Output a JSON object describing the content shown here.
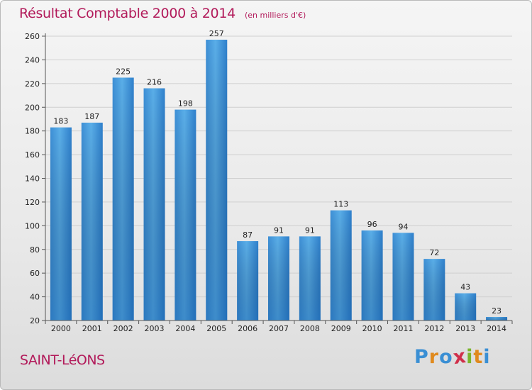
{
  "chart_data": {
    "type": "bar",
    "title": "Résultat Comptable 2000 à 2014",
    "unit_note": "(en milliers d'€)",
    "categories": [
      "2000",
      "2001",
      "2002",
      "2003",
      "2004",
      "2005",
      "2006",
      "2007",
      "2008",
      "2009",
      "2010",
      "2011",
      "2012",
      "2013",
      "2014"
    ],
    "values": [
      183,
      187,
      225,
      216,
      198,
      257,
      87,
      91,
      91,
      113,
      96,
      94,
      72,
      43,
      23
    ],
    "ylim": [
      20,
      260
    ],
    "yticks": [
      20,
      40,
      60,
      80,
      100,
      120,
      140,
      160,
      180,
      200,
      220,
      240,
      260
    ],
    "xlabel": "",
    "ylabel": "",
    "grid": true,
    "bar_color": "#4a9fe0",
    "bar_color_dark": "#2a78c3"
  },
  "commune": "SAINT-LéONS",
  "logo": {
    "text": "Proxiti",
    "letters": [
      {
        "ch": "P",
        "color": "#3a8fd4"
      },
      {
        "ch": "r",
        "color": "#e08a1e"
      },
      {
        "ch": "o",
        "color": "#3a8fd4"
      },
      {
        "ch": "x",
        "color": "#d02f4a"
      },
      {
        "ch": "i",
        "color": "#7bb52c"
      },
      {
        "ch": "t",
        "color": "#e08a1e"
      },
      {
        "ch": "i",
        "color": "#3a8fd4"
      }
    ]
  },
  "colors": {
    "title": "#b21a5a",
    "axis_text": "#222222",
    "grid": "#cfcfcf"
  }
}
